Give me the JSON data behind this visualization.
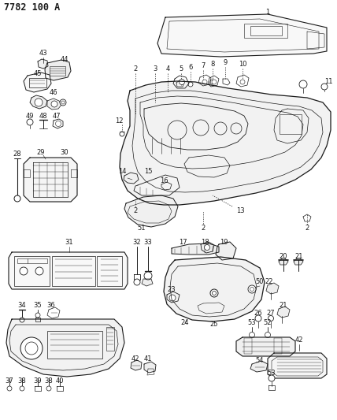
{
  "title": "7782 100 A",
  "bg_color": "#ffffff",
  "line_color": "#1a1a1a",
  "title_fontsize": 8.5,
  "label_fontsize": 6,
  "fig_width": 4.28,
  "fig_height": 5.33,
  "dpi": 100
}
